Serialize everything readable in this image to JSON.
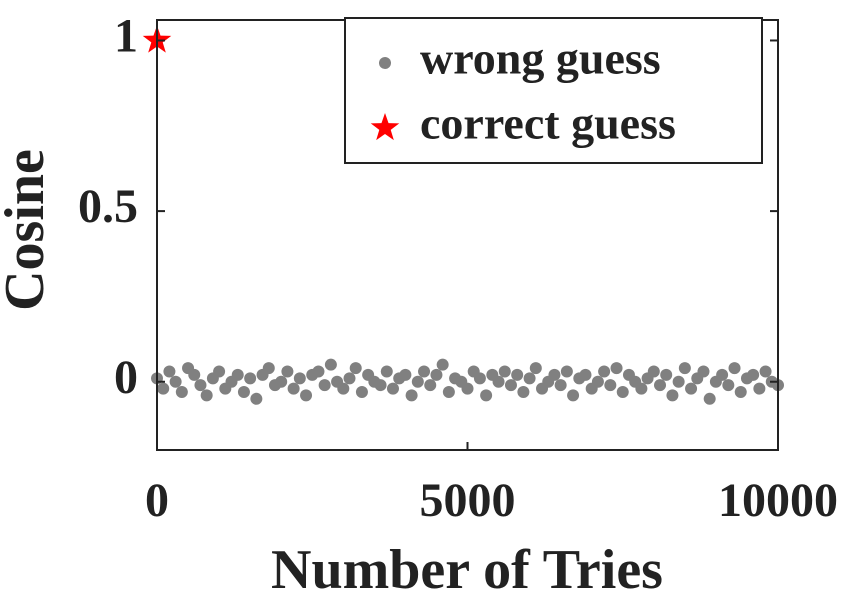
{
  "chart_data": {
    "type": "scatter",
    "xlabel": "Number of Tries",
    "ylabel": "Cosine",
    "xlim": [
      0,
      10000
    ],
    "xticks": [
      0,
      5000,
      10000
    ],
    "ylim": [
      -0.2,
      1.06
    ],
    "yticks": [
      0,
      0.5,
      1
    ],
    "legend": "upper right",
    "series": [
      {
        "name": "wrong guess",
        "color": "#808080",
        "marker": "circle",
        "x": [
          0,
          100,
          200,
          300,
          400,
          500,
          600,
          700,
          800,
          900,
          1000,
          1100,
          1200,
          1300,
          1400,
          1500,
          1600,
          1700,
          1800,
          1900,
          2000,
          2100,
          2200,
          2300,
          2400,
          2500,
          2600,
          2700,
          2800,
          2900,
          3000,
          3100,
          3200,
          3300,
          3400,
          3500,
          3600,
          3700,
          3800,
          3900,
          4000,
          4100,
          4200,
          4300,
          4400,
          4500,
          4600,
          4700,
          4800,
          4900,
          5000,
          5100,
          5200,
          5300,
          5400,
          5500,
          5600,
          5700,
          5800,
          5900,
          6000,
          6100,
          6200,
          6300,
          6400,
          6500,
          6600,
          6700,
          6800,
          6900,
          7000,
          7100,
          7200,
          7300,
          7400,
          7500,
          7600,
          7700,
          7800,
          7900,
          8000,
          8100,
          8200,
          8300,
          8400,
          8500,
          8600,
          8700,
          8800,
          8900,
          9000,
          9100,
          9200,
          9300,
          9400,
          9500,
          9600,
          9700,
          9800,
          9900,
          10000
        ],
        "values": [
          0.01,
          -0.02,
          0.03,
          0.0,
          -0.03,
          0.04,
          0.02,
          -0.01,
          -0.04,
          0.01,
          0.03,
          -0.02,
          0.0,
          0.02,
          -0.03,
          0.01,
          -0.05,
          0.02,
          0.04,
          -0.01,
          0.0,
          0.03,
          -0.02,
          0.01,
          -0.04,
          0.02,
          0.03,
          -0.01,
          0.05,
          0.0,
          -0.02,
          0.01,
          0.04,
          -0.03,
          0.02,
          0.0,
          -0.01,
          0.03,
          -0.02,
          0.01,
          0.02,
          -0.04,
          0.0,
          0.03,
          -0.01,
          0.02,
          0.05,
          -0.03,
          0.01,
          0.0,
          -0.02,
          0.03,
          0.01,
          -0.04,
          0.02,
          0.0,
          0.03,
          -0.01,
          0.02,
          -0.03,
          0.01,
          0.04,
          -0.02,
          0.0,
          0.02,
          -0.01,
          0.03,
          -0.04,
          0.01,
          0.02,
          -0.02,
          0.0,
          0.03,
          -0.01,
          0.04,
          -0.03,
          0.02,
          0.0,
          -0.02,
          0.01,
          0.03,
          -0.01,
          0.02,
          -0.04,
          0.0,
          0.04,
          -0.02,
          0.01,
          0.03,
          -0.05,
          0.0,
          0.02,
          -0.01,
          0.04,
          -0.03,
          0.01,
          0.02,
          -0.02,
          0.03,
          0.0,
          -0.01
        ]
      },
      {
        "name": "correct guess",
        "color": "#ff0000",
        "marker": "star",
        "x": [
          0
        ],
        "values": [
          1
        ]
      }
    ]
  }
}
